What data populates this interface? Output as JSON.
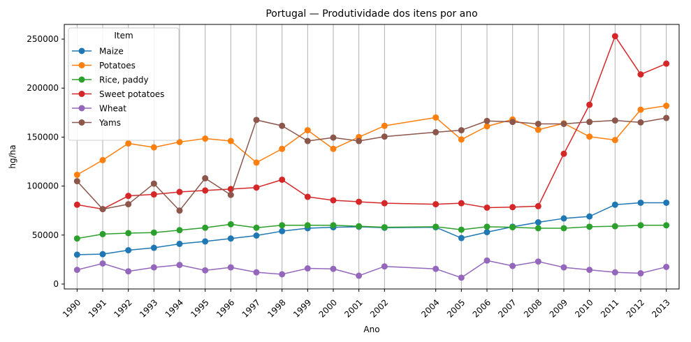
{
  "chart_data": {
    "type": "line",
    "title": "Portugal — Produtividade dos itens por ano",
    "xlabel": "Ano",
    "ylabel": "hg/ha",
    "x": [
      1990,
      1991,
      1992,
      1993,
      1994,
      1995,
      1996,
      1997,
      1998,
      1999,
      2000,
      2001,
      2002,
      2004,
      2005,
      2006,
      2007,
      2008,
      2009,
      2010,
      2011,
      2012,
      2013
    ],
    "xlim": [
      1989.5,
      2013.5
    ],
    "ylim": [
      -5000,
      265000
    ],
    "yticks": [
      0,
      50000,
      100000,
      150000,
      200000,
      250000
    ],
    "grid": "vertical",
    "legend": {
      "title": "Item",
      "location": "top-left"
    },
    "series": [
      {
        "name": "Maize",
        "color": "#1f77b4",
        "values": [
          30000,
          30500,
          34500,
          37000,
          41000,
          43500,
          46500,
          49500,
          54000,
          57000,
          58000,
          58500,
          57500,
          58000,
          47000,
          53000,
          58500,
          63000,
          67000,
          69000,
          81000,
          83000,
          83000
        ]
      },
      {
        "name": "Potatoes",
        "color": "#ff7f0e",
        "values": [
          111500,
          126500,
          143500,
          139500,
          145000,
          148500,
          146000,
          124000,
          138000,
          157000,
          138000,
          150000,
          161500,
          170000,
          147500,
          161000,
          168000,
          157500,
          164000,
          150500,
          147000,
          178000,
          182000
        ]
      },
      {
        "name": "Rice, paddy",
        "color": "#2ca02c",
        "values": [
          46500,
          51000,
          52000,
          52500,
          55000,
          57500,
          61000,
          57500,
          60000,
          60000,
          60000,
          59000,
          58000,
          58500,
          55500,
          58500,
          58000,
          57000,
          57000,
          58500,
          59000,
          60000,
          60000
        ]
      },
      {
        "name": "Sweet potatoes",
        "color": "#d62728",
        "values": [
          81000,
          76500,
          90000,
          91500,
          94000,
          95500,
          97000,
          98500,
          106500,
          89000,
          85500,
          84000,
          82500,
          81500,
          82500,
          78000,
          78500,
          79500,
          133000,
          183000,
          253000,
          214000,
          225000
        ]
      },
      {
        "name": "Wheat",
        "color": "#9467bd",
        "values": [
          14500,
          21000,
          13000,
          17000,
          19500,
          14000,
          17000,
          12000,
          10000,
          16000,
          15500,
          8500,
          18000,
          15500,
          6500,
          24000,
          18500,
          23000,
          17000,
          14500,
          12000,
          11000,
          17500
        ]
      },
      {
        "name": "Yams",
        "color": "#8c564b",
        "values": [
          105000,
          76500,
          81500,
          102500,
          75000,
          108000,
          91000,
          167500,
          161500,
          146000,
          149500,
          146000,
          150500,
          155000,
          157000,
          166500,
          165500,
          163500,
          163500,
          165500,
          167000,
          165000,
          169500
        ]
      }
    ]
  }
}
